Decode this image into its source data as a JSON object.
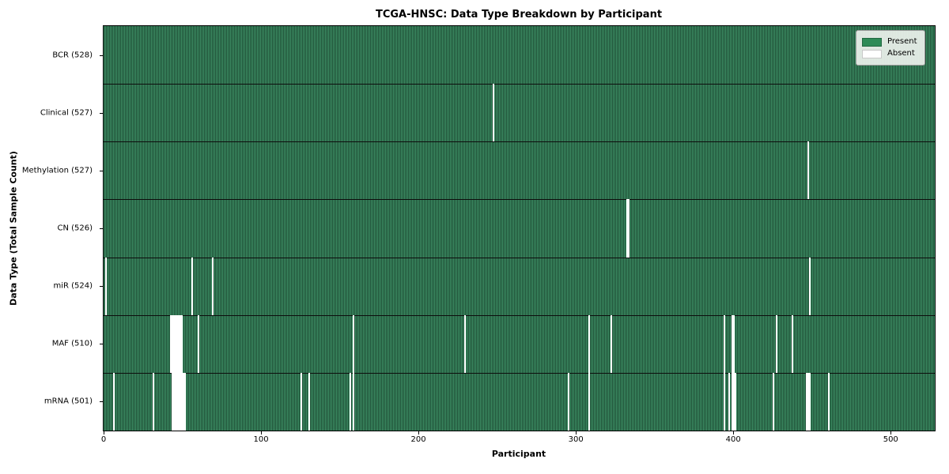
{
  "chart_data": {
    "type": "heatmap",
    "title": "TCGA-HNSC: Data Type Breakdown by Participant",
    "xlabel": "Participant",
    "ylabel": "Data Type (Total Sample Count)",
    "x_ticks": [
      0,
      100,
      200,
      300,
      400,
      500
    ],
    "x_range": [
      0,
      528
    ],
    "n_participants": 528,
    "grid": false,
    "legend_position": "upper right",
    "present_color": "#2e8b57",
    "absent_color": "#ffffff",
    "legend": [
      {
        "label": "Present",
        "color": "#2e8b57"
      },
      {
        "label": "Absent",
        "color": "#ffffff"
      }
    ],
    "rows": [
      {
        "label": "BCR (528)",
        "total": 528,
        "absent": []
      },
      {
        "label": "Clinical (527)",
        "total": 527,
        "absent": [
          247
        ]
      },
      {
        "label": "Methylation (527)",
        "total": 527,
        "absent": [
          447
        ]
      },
      {
        "label": "CN (526)",
        "total": 526,
        "absent": [
          332,
          333
        ]
      },
      {
        "label": "miR (524)",
        "total": 524,
        "absent": [
          1,
          56,
          69,
          448
        ]
      },
      {
        "label": "MAF (510)",
        "total": 510,
        "absent": [
          42,
          43,
          44,
          45,
          46,
          47,
          48,
          49,
          60,
          158,
          229,
          308,
          322,
          394,
          399,
          400,
          427,
          437
        ]
      },
      {
        "label": "mRNA (501)",
        "total": 501,
        "absent": [
          6,
          31,
          43,
          44,
          45,
          46,
          47,
          48,
          49,
          50,
          51,
          125,
          130,
          156,
          158,
          295,
          308,
          394,
          397,
          399,
          400,
          401,
          425,
          446,
          447,
          448,
          460
        ]
      }
    ]
  }
}
